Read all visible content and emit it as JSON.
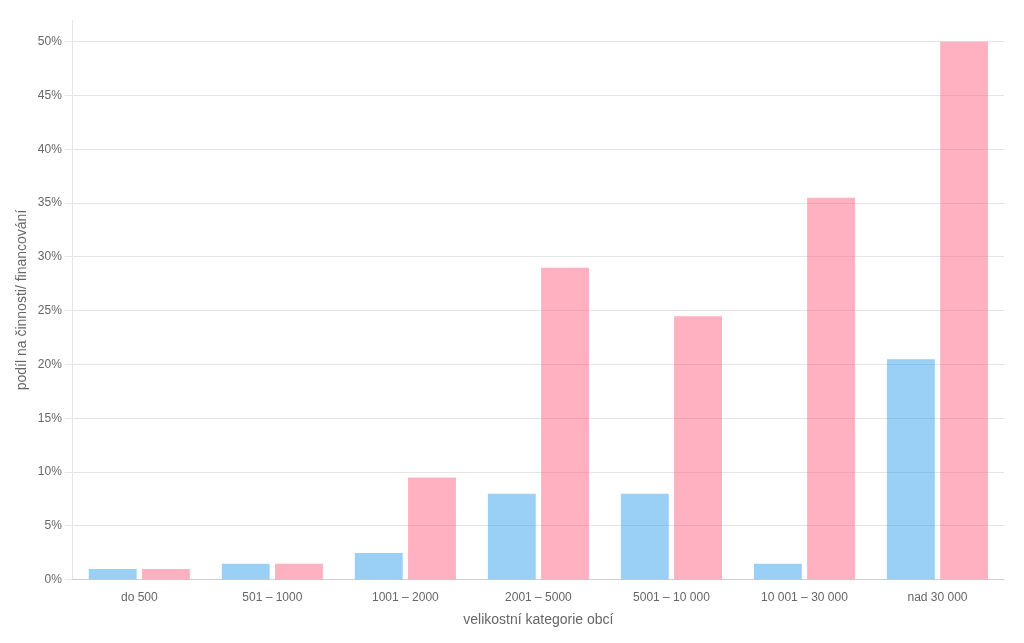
{
  "chart_data": {
    "type": "bar",
    "xlabel": "velikostní kategorie obcí",
    "ylabel": "podíl na činnosti/ financování",
    "categories": [
      "do 500",
      "501 – 1000",
      "1001 – 2000",
      "2001 – 5000",
      "5001 – 10 000",
      "10 001 – 30 000",
      "nad 30 000"
    ],
    "series": [
      {
        "values": [
          1.0,
          1.5,
          2.5,
          8.0,
          8.0,
          1.5,
          20.5
        ]
      },
      {
        "values": [
          1.0,
          1.5,
          9.5,
          29.0,
          24.5,
          35.5,
          50.0
        ]
      }
    ],
    "ylim": [
      0,
      52
    ],
    "yticks": [
      {
        "value": 0,
        "label": "0%"
      },
      {
        "value": 5,
        "label": "5%"
      },
      {
        "value": 10,
        "label": "10%"
      },
      {
        "value": 15,
        "label": "15%"
      },
      {
        "value": 20,
        "label": "20%"
      },
      {
        "value": 25,
        "label": "25%"
      },
      {
        "value": 30,
        "label": "30%"
      },
      {
        "value": 35,
        "label": "35%"
      },
      {
        "value": 40,
        "label": "40%"
      },
      {
        "value": 45,
        "label": "45%"
      },
      {
        "value": 50,
        "label": "50%"
      }
    ],
    "grid": true
  }
}
